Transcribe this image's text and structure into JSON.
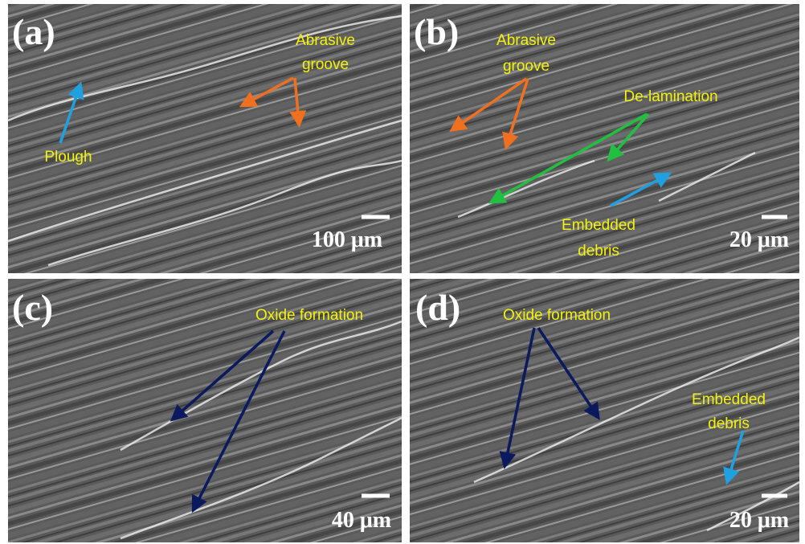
{
  "panels": [
    {
      "label": "(a)",
      "scale_bar": "100 μm",
      "annotations": [
        {
          "lines": [
            "Abrasive",
            "groove"
          ]
        },
        {
          "lines": [
            "Plough"
          ]
        }
      ]
    },
    {
      "label": "(b)",
      "scale_bar": "20 μm",
      "annotations": [
        {
          "lines": [
            "Abrasive",
            "groove"
          ]
        },
        {
          "lines": [
            "De-lamination"
          ]
        },
        {
          "lines": [
            "Embedded",
            "debris"
          ]
        }
      ]
    },
    {
      "label": "(c)",
      "scale_bar": "40 μm",
      "annotations": [
        {
          "lines": [
            "Oxide formation"
          ]
        }
      ]
    },
    {
      "label": "(d)",
      "scale_bar": "20 μm",
      "annotations": [
        {
          "lines": [
            "Oxide formation"
          ]
        },
        {
          "lines": [
            "Embedded",
            "debris"
          ]
        }
      ]
    }
  ]
}
